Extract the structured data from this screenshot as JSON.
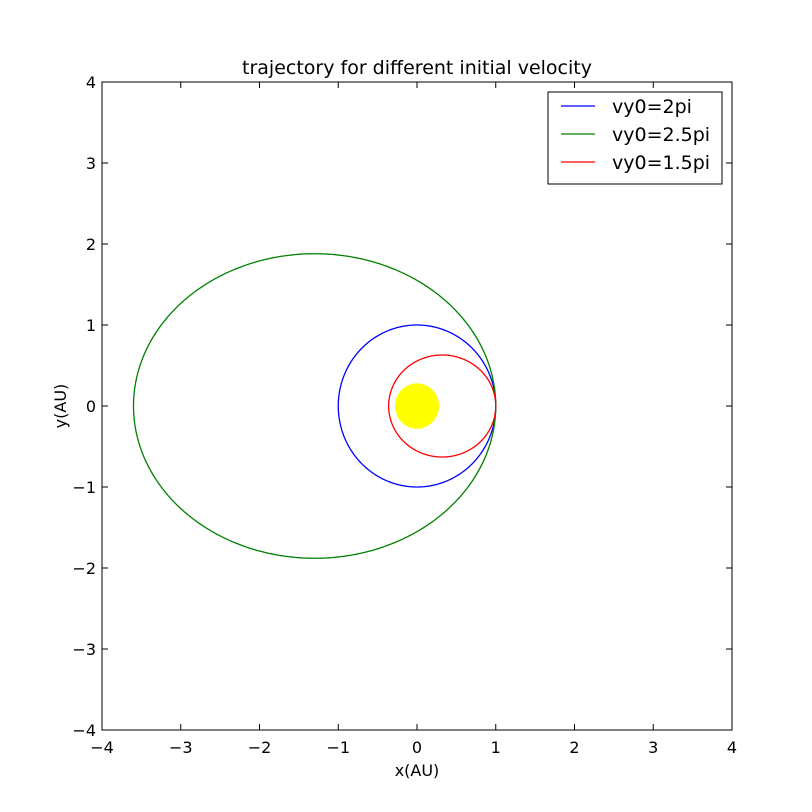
{
  "chart_data": {
    "type": "line",
    "title": "trajectory for different initial velocity",
    "xlabel": "x(AU)",
    "ylabel": "y(AU)",
    "xlim": [
      -4,
      4
    ],
    "ylim": [
      -4,
      4
    ],
    "x_ticks": [
      "−4",
      "−3",
      "−2",
      "−1",
      "0",
      "1",
      "2",
      "3",
      "4"
    ],
    "y_ticks": [
      "−4",
      "−3",
      "−2",
      "−1",
      "0",
      "1",
      "2",
      "3",
      "4"
    ],
    "grid": false,
    "legend_position": "top-right",
    "series": [
      {
        "name": "vy0=2pi",
        "color": "#0000ff",
        "shape": "ellipse",
        "center": [
          0,
          0
        ],
        "semi_axis_x": 1.0,
        "semi_axis_y": 1.0
      },
      {
        "name": "vy0=2.5pi",
        "color": "#008000",
        "shape": "ellipse",
        "center": [
          -1.3,
          0
        ],
        "semi_axis_x": 2.3,
        "semi_axis_y": 1.88
      },
      {
        "name": "vy0=1.5pi",
        "color": "#ff0000",
        "shape": "ellipse",
        "center": [
          0.32,
          0
        ],
        "semi_axis_x": 0.68,
        "semi_axis_y": 0.63
      }
    ],
    "sun": {
      "center": [
        0,
        0
      ],
      "radius": 0.28,
      "color": "#ffff00"
    }
  }
}
